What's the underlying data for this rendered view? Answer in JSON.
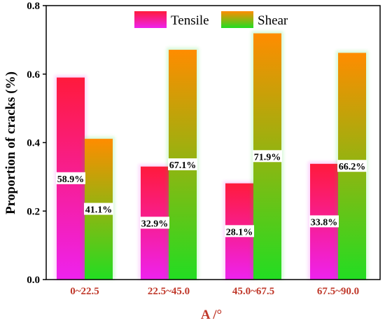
{
  "chart_data": {
    "type": "bar",
    "title": "",
    "xlabel": "A /°",
    "ylabel": "Proportion of  cracks (%)",
    "ylim": [
      0,
      0.8
    ],
    "yticks": [
      "0.0",
      "0.2",
      "0.4",
      "0.6",
      "0.8"
    ],
    "categories": [
      "0~22.5",
      "22.5~45.0",
      "45.0~67.5",
      "67.5~90.0"
    ],
    "series": [
      {
        "name": "Tensile",
        "values": [
          0.59,
          0.33,
          0.281,
          0.338
        ],
        "labels": [
          "58.9%",
          "32.9%",
          "28.1%",
          "33.8%"
        ],
        "gradient": [
          "#ff1a3c",
          "#ee22ee"
        ]
      },
      {
        "name": "Shear",
        "values": [
          0.411,
          0.671,
          0.719,
          0.662
        ],
        "labels": [
          "41.1%",
          "67.1%",
          "71.9%",
          "66.2%"
        ],
        "gradient": [
          "#ff8c00",
          "#22dd22"
        ]
      }
    ],
    "legend_position": "top-center",
    "grid": false,
    "colors": {
      "category_label": "#c0392b",
      "axis": "#000000"
    }
  }
}
